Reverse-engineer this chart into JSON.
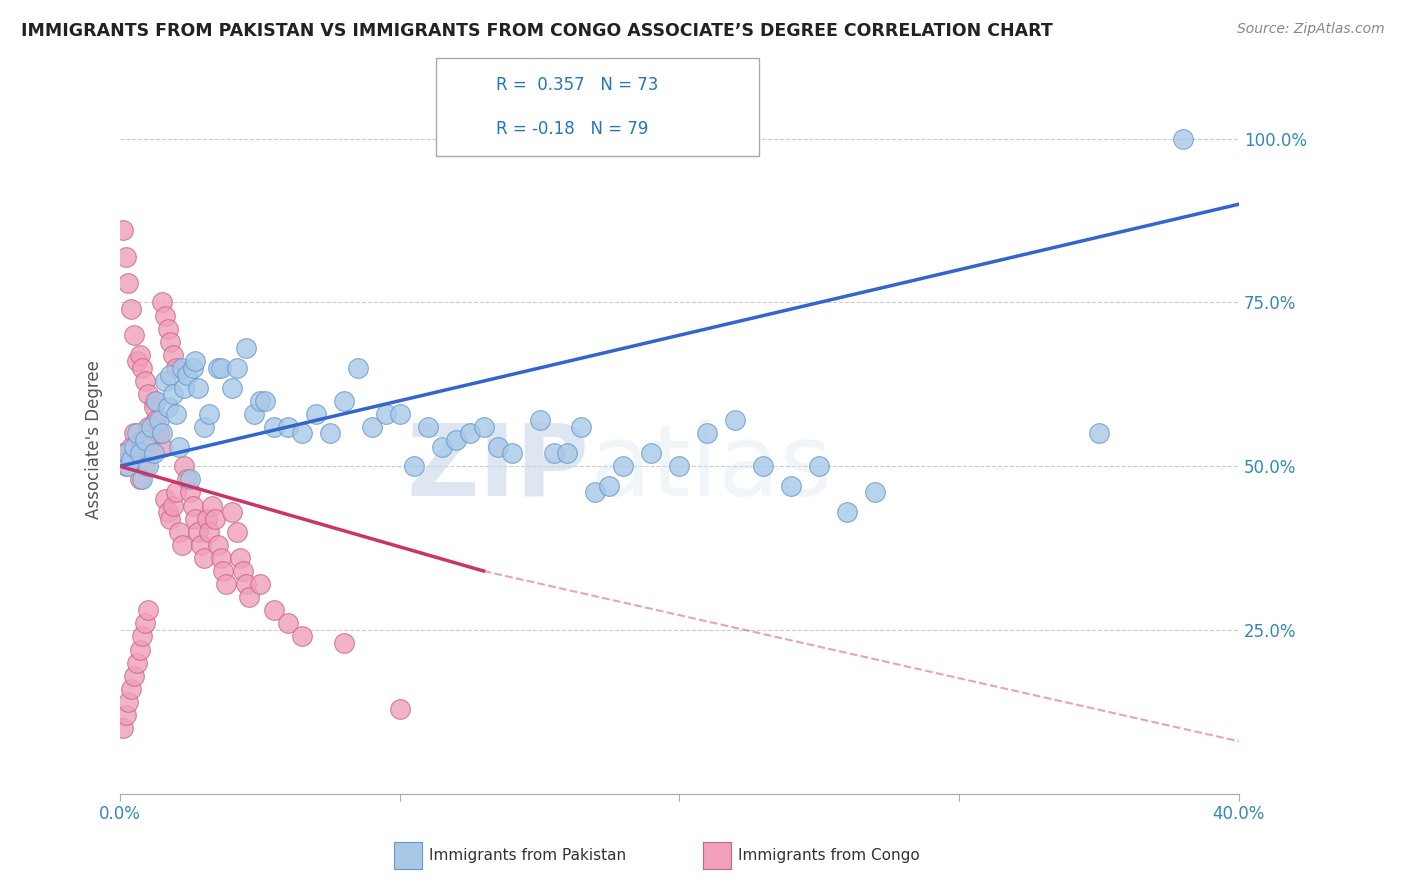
{
  "title": "IMMIGRANTS FROM PAKISTAN VS IMMIGRANTS FROM CONGO ASSOCIATE’S DEGREE CORRELATION CHART",
  "source": "Source: ZipAtlas.com",
  "ylabel": "Associate's Degree",
  "y_tick_labels": [
    "25.0%",
    "50.0%",
    "75.0%",
    "100.0%"
  ],
  "y_tick_values": [
    0.25,
    0.5,
    0.75,
    1.0
  ],
  "x_min": 0.0,
  "x_max": 0.4,
  "y_min": 0.0,
  "y_max": 1.08,
  "watermark_zip": "ZIP",
  "watermark_atlas": "atlas",
  "legend_pak_R": 0.357,
  "legend_pak_N": 73,
  "legend_con_R": -0.18,
  "legend_con_N": 79,
  "pakistan_color": "#a8c8e8",
  "pakistan_edge": "#6699cc",
  "congo_color": "#f0a0b8",
  "congo_edge": "#cc6688",
  "trend_pakistan_color": "#3366cc",
  "trend_congo_color": "#cc3366",
  "grid_color": "#cccccc",
  "background": "#ffffff",
  "trend_pak_x0": 0.0,
  "trend_pak_y0": 0.5,
  "trend_pak_x1": 0.4,
  "trend_pak_y1": 0.9,
  "trend_con_x0": 0.0,
  "trend_con_y0": 0.5,
  "trend_con_x1_solid": 0.13,
  "trend_con_y1_solid": 0.34,
  "trend_con_x1_dash": 0.4,
  "trend_con_y1_dash": 0.08,
  "pakistan_points": [
    [
      0.002,
      0.52
    ],
    [
      0.003,
      0.5
    ],
    [
      0.004,
      0.51
    ],
    [
      0.005,
      0.53
    ],
    [
      0.006,
      0.55
    ],
    [
      0.007,
      0.52
    ],
    [
      0.008,
      0.48
    ],
    [
      0.009,
      0.54
    ],
    [
      0.01,
      0.5
    ],
    [
      0.011,
      0.56
    ],
    [
      0.012,
      0.52
    ],
    [
      0.013,
      0.6
    ],
    [
      0.014,
      0.57
    ],
    [
      0.015,
      0.55
    ],
    [
      0.016,
      0.63
    ],
    [
      0.017,
      0.59
    ],
    [
      0.018,
      0.64
    ],
    [
      0.019,
      0.61
    ],
    [
      0.02,
      0.58
    ],
    [
      0.021,
      0.53
    ],
    [
      0.022,
      0.65
    ],
    [
      0.023,
      0.62
    ],
    [
      0.024,
      0.64
    ],
    [
      0.025,
      0.48
    ],
    [
      0.026,
      0.65
    ],
    [
      0.027,
      0.66
    ],
    [
      0.028,
      0.62
    ],
    [
      0.03,
      0.56
    ],
    [
      0.032,
      0.58
    ],
    [
      0.035,
      0.65
    ],
    [
      0.036,
      0.65
    ],
    [
      0.04,
      0.62
    ],
    [
      0.042,
      0.65
    ],
    [
      0.045,
      0.68
    ],
    [
      0.048,
      0.58
    ],
    [
      0.05,
      0.6
    ],
    [
      0.052,
      0.6
    ],
    [
      0.055,
      0.56
    ],
    [
      0.06,
      0.56
    ],
    [
      0.065,
      0.55
    ],
    [
      0.07,
      0.58
    ],
    [
      0.075,
      0.55
    ],
    [
      0.08,
      0.6
    ],
    [
      0.085,
      0.65
    ],
    [
      0.09,
      0.56
    ],
    [
      0.095,
      0.58
    ],
    [
      0.1,
      0.58
    ],
    [
      0.105,
      0.5
    ],
    [
      0.11,
      0.56
    ],
    [
      0.115,
      0.53
    ],
    [
      0.12,
      0.54
    ],
    [
      0.125,
      0.55
    ],
    [
      0.13,
      0.56
    ],
    [
      0.135,
      0.53
    ],
    [
      0.14,
      0.52
    ],
    [
      0.15,
      0.57
    ],
    [
      0.155,
      0.52
    ],
    [
      0.16,
      0.52
    ],
    [
      0.165,
      0.56
    ],
    [
      0.17,
      0.46
    ],
    [
      0.175,
      0.47
    ],
    [
      0.18,
      0.5
    ],
    [
      0.19,
      0.52
    ],
    [
      0.2,
      0.5
    ],
    [
      0.21,
      0.55
    ],
    [
      0.22,
      0.57
    ],
    [
      0.23,
      0.5
    ],
    [
      0.24,
      0.47
    ],
    [
      0.25,
      0.5
    ],
    [
      0.26,
      0.43
    ],
    [
      0.27,
      0.46
    ],
    [
      0.35,
      0.55
    ],
    [
      0.38,
      1.0
    ]
  ],
  "congo_points": [
    [
      0.001,
      0.52
    ],
    [
      0.002,
      0.5
    ],
    [
      0.003,
      0.51
    ],
    [
      0.004,
      0.53
    ],
    [
      0.005,
      0.55
    ],
    [
      0.006,
      0.52
    ],
    [
      0.007,
      0.48
    ],
    [
      0.008,
      0.54
    ],
    [
      0.009,
      0.5
    ],
    [
      0.01,
      0.56
    ],
    [
      0.011,
      0.52
    ],
    [
      0.012,
      0.6
    ],
    [
      0.013,
      0.57
    ],
    [
      0.014,
      0.55
    ],
    [
      0.015,
      0.53
    ],
    [
      0.016,
      0.45
    ],
    [
      0.017,
      0.43
    ],
    [
      0.018,
      0.42
    ],
    [
      0.019,
      0.44
    ],
    [
      0.02,
      0.46
    ],
    [
      0.021,
      0.4
    ],
    [
      0.022,
      0.38
    ],
    [
      0.023,
      0.5
    ],
    [
      0.024,
      0.48
    ],
    [
      0.025,
      0.46
    ],
    [
      0.026,
      0.44
    ],
    [
      0.027,
      0.42
    ],
    [
      0.028,
      0.4
    ],
    [
      0.029,
      0.38
    ],
    [
      0.03,
      0.36
    ],
    [
      0.031,
      0.42
    ],
    [
      0.032,
      0.4
    ],
    [
      0.033,
      0.44
    ],
    [
      0.034,
      0.42
    ],
    [
      0.035,
      0.38
    ],
    [
      0.036,
      0.36
    ],
    [
      0.037,
      0.34
    ],
    [
      0.038,
      0.32
    ],
    [
      0.04,
      0.43
    ],
    [
      0.042,
      0.4
    ],
    [
      0.043,
      0.36
    ],
    [
      0.044,
      0.34
    ],
    [
      0.045,
      0.32
    ],
    [
      0.046,
      0.3
    ],
    [
      0.05,
      0.32
    ],
    [
      0.055,
      0.28
    ],
    [
      0.06,
      0.26
    ],
    [
      0.065,
      0.24
    ],
    [
      0.001,
      0.86
    ],
    [
      0.002,
      0.82
    ],
    [
      0.003,
      0.78
    ],
    [
      0.004,
      0.74
    ],
    [
      0.005,
      0.7
    ],
    [
      0.006,
      0.66
    ],
    [
      0.007,
      0.67
    ],
    [
      0.008,
      0.65
    ],
    [
      0.009,
      0.63
    ],
    [
      0.01,
      0.61
    ],
    [
      0.012,
      0.59
    ],
    [
      0.013,
      0.57
    ],
    [
      0.014,
      0.55
    ],
    [
      0.015,
      0.75
    ],
    [
      0.016,
      0.73
    ],
    [
      0.017,
      0.71
    ],
    [
      0.018,
      0.69
    ],
    [
      0.019,
      0.67
    ],
    [
      0.02,
      0.65
    ],
    [
      0.001,
      0.1
    ],
    [
      0.002,
      0.12
    ],
    [
      0.003,
      0.14
    ],
    [
      0.004,
      0.16
    ],
    [
      0.005,
      0.18
    ],
    [
      0.006,
      0.2
    ],
    [
      0.007,
      0.22
    ],
    [
      0.008,
      0.24
    ],
    [
      0.009,
      0.26
    ],
    [
      0.01,
      0.28
    ],
    [
      0.08,
      0.23
    ],
    [
      0.1,
      0.13
    ]
  ]
}
